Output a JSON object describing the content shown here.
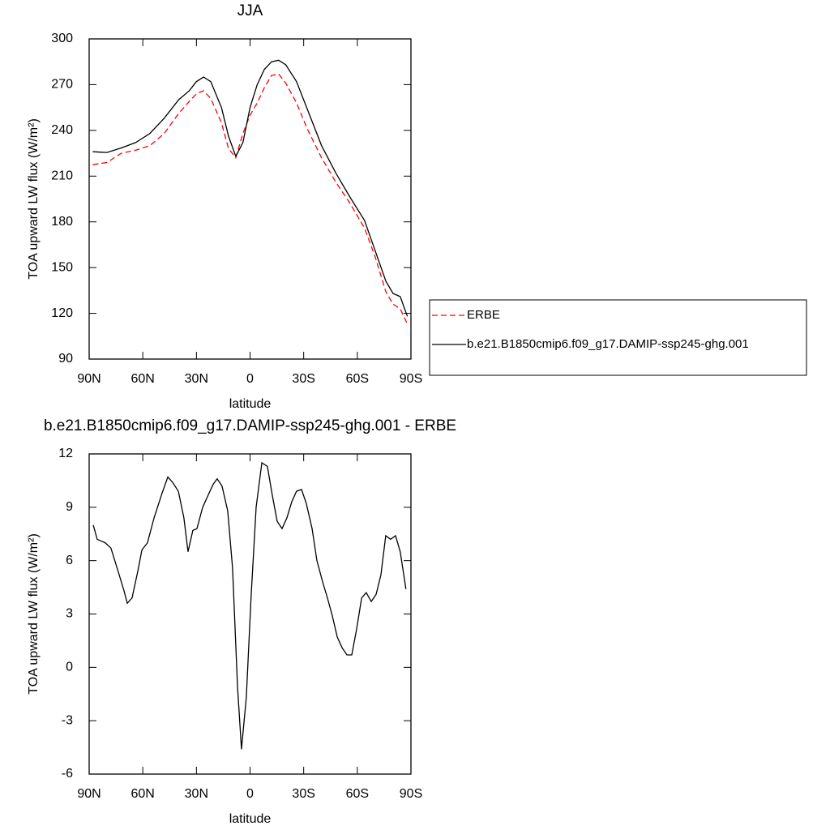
{
  "chart_data": [
    {
      "type": "line",
      "title": "JJA",
      "xlabel": "latitude",
      "ylabel": "TOA upward LW flux (W/m²)",
      "x": [
        88,
        80,
        72,
        64,
        56,
        48,
        40,
        34,
        30,
        26,
        22,
        16,
        12,
        8,
        4,
        0,
        -4,
        -8,
        -12,
        -16,
        -20,
        -26,
        -32,
        -40,
        -48,
        -56,
        -64,
        -70,
        -76,
        -80,
        -84,
        -88
      ],
      "series": [
        {
          "name": "ERBE",
          "color": "#ff0000",
          "line_style": "dashed",
          "values": [
            217.5,
            219,
            225,
            227,
            230,
            238,
            251,
            259,
            264,
            266,
            261,
            245,
            228,
            222,
            238,
            250,
            258,
            268,
            276,
            277,
            271,
            258,
            241,
            222,
            206,
            192,
            176,
            157,
            134,
            126,
            123,
            113
          ]
        },
        {
          "name": "b.e21.B1850cmip6.f09_g17.DAMIP-ssp245-ghg.001",
          "color": "#000000",
          "line_style": "solid",
          "values": [
            226,
            225.5,
            228.5,
            232,
            238,
            248,
            260,
            266,
            272,
            275,
            272,
            255,
            236,
            223,
            232,
            255,
            270,
            280,
            285,
            286,
            283,
            272,
            254,
            230,
            212,
            196,
            181,
            161,
            141,
            133,
            131,
            118
          ]
        }
      ],
      "xlim": [
        90,
        -90
      ],
      "xticks": [
        {
          "value": 90,
          "label": "90N"
        },
        {
          "value": 60,
          "label": "60N"
        },
        {
          "value": 30,
          "label": "30N"
        },
        0,
        {
          "value": -30,
          "label": "30S"
        },
        {
          "value": -60,
          "label": "60S"
        },
        {
          "value": -90,
          "label": "90S"
        }
      ],
      "ylim": [
        90,
        300
      ],
      "yticks": [
        90,
        120,
        150,
        180,
        210,
        240,
        270,
        300
      ],
      "legend": "right"
    },
    {
      "type": "line",
      "title": "b.e21.B1850cmip6.f09_g17.DAMIP-ssp245-ghg.001 - ERBE",
      "xlabel": "latitude",
      "ylabel": "TOA upward LW flux (W/m²)",
      "x": [
        87.7,
        85.5,
        81,
        77.8,
        73.2,
        70.5,
        68.7,
        66,
        62.8,
        60.5,
        57.4,
        53.7,
        49.2,
        46,
        43.3,
        40.1,
        37,
        34.7,
        32,
        29.7,
        26.5,
        22.9,
        20.6,
        18.4,
        15.7,
        12.5,
        9.8,
        7,
        4.8,
        2.1,
        -0.6,
        -3.4,
        -6.6,
        -9.7,
        -12.4,
        -15.2,
        -17.9,
        -20.6,
        -23.3,
        -26,
        -28.8,
        -31.5,
        -34.7,
        -37.4,
        -40.6,
        -43.3,
        -46,
        -48.8,
        -51.5,
        -54.2,
        -56.9,
        -59.7,
        -62.4,
        -65,
        -67.8,
        -70.5,
        -73.2,
        -75.9,
        -78.6,
        -81.4,
        -84,
        -87.2
      ],
      "values": [
        8.0,
        7.2,
        7.0,
        6.7,
        5.2,
        4.3,
        3.6,
        3.9,
        5.4,
        6.6,
        7.0,
        8.4,
        9.8,
        10.7,
        10.4,
        9.9,
        8.4,
        6.5,
        7.7,
        7.8,
        9.0,
        9.8,
        10.3,
        10.6,
        10.2,
        8.8,
        5.6,
        -1.1,
        -4.6,
        -1.7,
        4.0,
        9.0,
        11.5,
        11.3,
        9.7,
        8.2,
        7.8,
        8.4,
        9.3,
        9.9,
        10.0,
        9.2,
        7.8,
        6.0,
        4.8,
        3.9,
        2.9,
        1.7,
        1.1,
        0.7,
        0.7,
        2.2,
        3.9,
        4.2,
        3.7,
        4.1,
        5.2,
        7.4,
        7.2,
        7.4,
        6.5,
        4.4
      ],
      "color": "#000000",
      "line_style": "solid",
      "xlim": [
        90,
        -90
      ],
      "xticks": [
        {
          "value": 90,
          "label": "90N"
        },
        {
          "value": 60,
          "label": "60N"
        },
        {
          "value": 30,
          "label": "30N"
        },
        0,
        {
          "value": -30,
          "label": "30S"
        },
        {
          "value": -60,
          "label": "60S"
        },
        {
          "value": -90,
          "label": "90S"
        }
      ],
      "ylim": [
        -6,
        12
      ],
      "yticks": [
        -6,
        -3,
        0,
        3,
        6,
        9,
        12
      ]
    }
  ]
}
